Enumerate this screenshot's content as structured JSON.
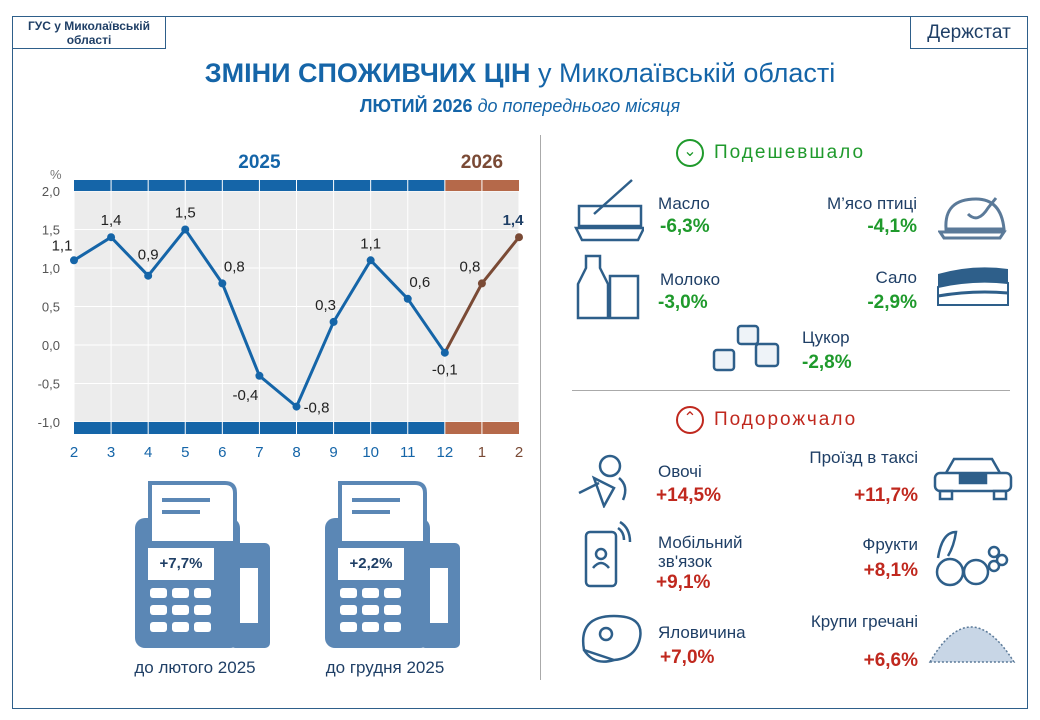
{
  "header": {
    "org": "ГУС у Миколаївській області",
    "brand": "Держстат",
    "title_bold": "ЗМІНИ СПОЖИВЧИХ ЦІН",
    "title_rest": " у Миколаївській області",
    "subtitle_bold": "ЛЮТИЙ 2026",
    "subtitle_rest": " до попереднього місяця"
  },
  "chart_data": {
    "type": "line",
    "ylabel": "%",
    "ylim": [
      -1.0,
      2.0
    ],
    "yticks": [
      "2,0",
      "1,5",
      "1,0",
      "0,5",
      "0,0",
      "-0,5",
      "-1,0"
    ],
    "grid": true,
    "year_labels": [
      "2025",
      "2026"
    ],
    "categories": [
      "2",
      "3",
      "4",
      "5",
      "6",
      "7",
      "8",
      "9",
      "10",
      "11",
      "12",
      "1",
      "2"
    ],
    "values": [
      1.1,
      1.4,
      0.9,
      1.5,
      0.8,
      -0.4,
      -0.8,
      0.3,
      1.1,
      0.6,
      -0.1,
      0.8,
      1.4
    ],
    "data_labels": [
      "1,1",
      "1,4",
      "0,9",
      "1,5",
      "0,8",
      "-0,4",
      "-0,8",
      "0,3",
      "1,1",
      "0,6",
      "-0,1",
      "0,8",
      "1,4"
    ],
    "colors": {
      "2025": "#1565a8",
      "2026": "#7a4a35",
      "band2026": "#b5694a"
    }
  },
  "registers": [
    {
      "value": "+7,7%",
      "caption": "до лютого 2025"
    },
    {
      "value": "+2,2%",
      "caption": "до грудня 2025"
    }
  ],
  "cheaper": {
    "title": "Подешевшало",
    "icon": "chevron-down",
    "color": "#1f9a2c",
    "items": [
      {
        "name": "Масло",
        "value": "-6,3%",
        "icon": "butter"
      },
      {
        "name": "М’ясо птиці",
        "value": "-4,1%",
        "icon": "chicken"
      },
      {
        "name": "Молоко",
        "value": "-3,0%",
        "icon": "milk"
      },
      {
        "name": "Сало",
        "value": "-2,9%",
        "icon": "lard"
      },
      {
        "name": "Цукор",
        "value": "-2,8%",
        "icon": "sugar"
      }
    ]
  },
  "pricier": {
    "title": "Подорожчало",
    "icon": "chevron-up",
    "color": "#c0281e",
    "items": [
      {
        "name": "Овочі",
        "value": "+14,5%",
        "icon": "vegetables"
      },
      {
        "name": "Проїзд в таксі",
        "value": "+11,7%",
        "icon": "taxi"
      },
      {
        "name": "Мобільний зв'язок",
        "value": "+9,1%",
        "icon": "phone"
      },
      {
        "name": "Фрукти",
        "value": "+8,1%",
        "icon": "fruits"
      },
      {
        "name": "Яловичина",
        "value": "+7,0%",
        "icon": "beef"
      },
      {
        "name": "Крупи гречані",
        "value": "+6,6%",
        "icon": "buckwheat"
      }
    ]
  }
}
